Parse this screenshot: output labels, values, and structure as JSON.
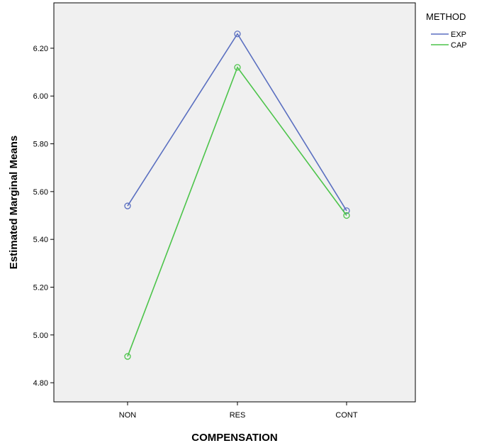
{
  "chart_data": {
    "type": "line",
    "title": "",
    "xlabel": "COMPENSATION",
    "ylabel": "Estimated Marginal Means",
    "categories": [
      "NON",
      "RES",
      "CONT"
    ],
    "ylim": [
      4.72,
      6.39
    ],
    "yticks": [
      4.8,
      5.0,
      5.2,
      5.4,
      5.6,
      5.8,
      6.0,
      6.2
    ],
    "ytick_labels": [
      "4.80",
      "5.00",
      "5.20",
      "5.40",
      "5.60",
      "5.80",
      "6.00",
      "6.20"
    ],
    "grid": false,
    "legend": {
      "title": "METHOD",
      "placement": "top-right outside"
    },
    "series": [
      {
        "name": "EXP",
        "values": [
          5.54,
          6.26,
          5.52
        ],
        "color": "#5a6fc0"
      },
      {
        "name": "CAP",
        "values": [
          4.91,
          6.12,
          5.5
        ],
        "color": "#4cc44a"
      }
    ],
    "plot_background": "#f0f0f0",
    "axis_color": "#000000"
  }
}
